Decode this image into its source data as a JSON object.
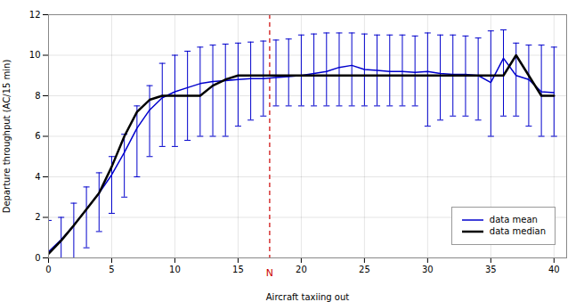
{
  "chart_data": {
    "type": "line",
    "xlabel": "Aircraft taxiing out",
    "ylabel": "Departure throughput (AC/15 min)",
    "x": [
      0,
      1,
      2,
      3,
      4,
      5,
      6,
      7,
      8,
      9,
      10,
      11,
      12,
      13,
      14,
      15,
      16,
      17,
      18,
      19,
      20,
      21,
      22,
      23,
      24,
      25,
      26,
      27,
      28,
      29,
      30,
      31,
      32,
      33,
      34,
      35,
      36,
      37,
      38,
      39,
      40
    ],
    "series": [
      {
        "name": "data mean",
        "color": "#0000cc",
        "values": [
          0.3,
          0.9,
          1.6,
          2.4,
          3.2,
          4.1,
          5.2,
          6.4,
          7.3,
          7.9,
          8.2,
          8.4,
          8.6,
          8.7,
          8.75,
          8.8,
          8.85,
          8.85,
          8.9,
          8.95,
          9.0,
          9.1,
          9.2,
          9.4,
          9.5,
          9.3,
          9.25,
          9.2,
          9.2,
          9.15,
          9.2,
          9.1,
          9.05,
          9.05,
          9.0,
          8.65,
          9.85,
          9.0,
          8.8,
          8.2,
          8.15
        ]
      },
      {
        "name": "data median",
        "color": "#000000",
        "values": [
          0.2,
          0.85,
          1.6,
          2.4,
          3.2,
          4.5,
          6.0,
          7.2,
          7.8,
          8.0,
          8.0,
          8.0,
          8.0,
          8.5,
          8.8,
          9.0,
          9.0,
          9.0,
          9.0,
          9.0,
          9.0,
          9.0,
          9.0,
          9.0,
          9.0,
          9.0,
          9.0,
          9.0,
          9.0,
          9.0,
          9.0,
          9.0,
          9.0,
          9.0,
          9.0,
          9.0,
          9.0,
          10.0,
          9.0,
          8.0,
          8.0
        ]
      }
    ],
    "error_bars": {
      "color": "#0000cc",
      "lower": [
        0.0,
        0.0,
        0.0,
        0.5,
        1.3,
        2.2,
        3.0,
        4.0,
        5.0,
        5.5,
        5.5,
        5.8,
        6.0,
        6.0,
        6.0,
        6.5,
        6.8,
        7.0,
        7.5,
        7.5,
        7.5,
        7.5,
        7.5,
        7.5,
        7.5,
        7.5,
        7.5,
        7.5,
        7.5,
        7.5,
        6.5,
        6.8,
        7.0,
        7.0,
        6.8,
        6.0,
        7.0,
        7.0,
        6.5,
        6.0,
        6.0
      ],
      "upper": [
        1.85,
        2.0,
        2.7,
        3.5,
        4.2,
        5.0,
        6.1,
        7.5,
        8.5,
        9.6,
        10.0,
        10.2,
        10.4,
        10.5,
        10.55,
        10.6,
        10.65,
        10.7,
        10.75,
        10.8,
        11.0,
        11.05,
        11.1,
        11.1,
        11.1,
        11.05,
        11.0,
        11.0,
        11.0,
        10.95,
        11.1,
        11.0,
        11.0,
        10.95,
        10.85,
        11.2,
        11.25,
        10.6,
        10.5,
        10.5,
        10.4
      ]
    },
    "annotations": [
      {
        "text": "N",
        "x": 17.5,
        "color": "#cc0000",
        "line_style": "dashed"
      }
    ],
    "xlim": [
      0,
      41
    ],
    "ylim": [
      0,
      12
    ],
    "xticks": [
      0,
      5,
      10,
      15,
      20,
      25,
      30,
      35,
      40
    ],
    "yticks": [
      0,
      2,
      4,
      6,
      8,
      10,
      12
    ],
    "grid": true,
    "legend": "lower right"
  }
}
